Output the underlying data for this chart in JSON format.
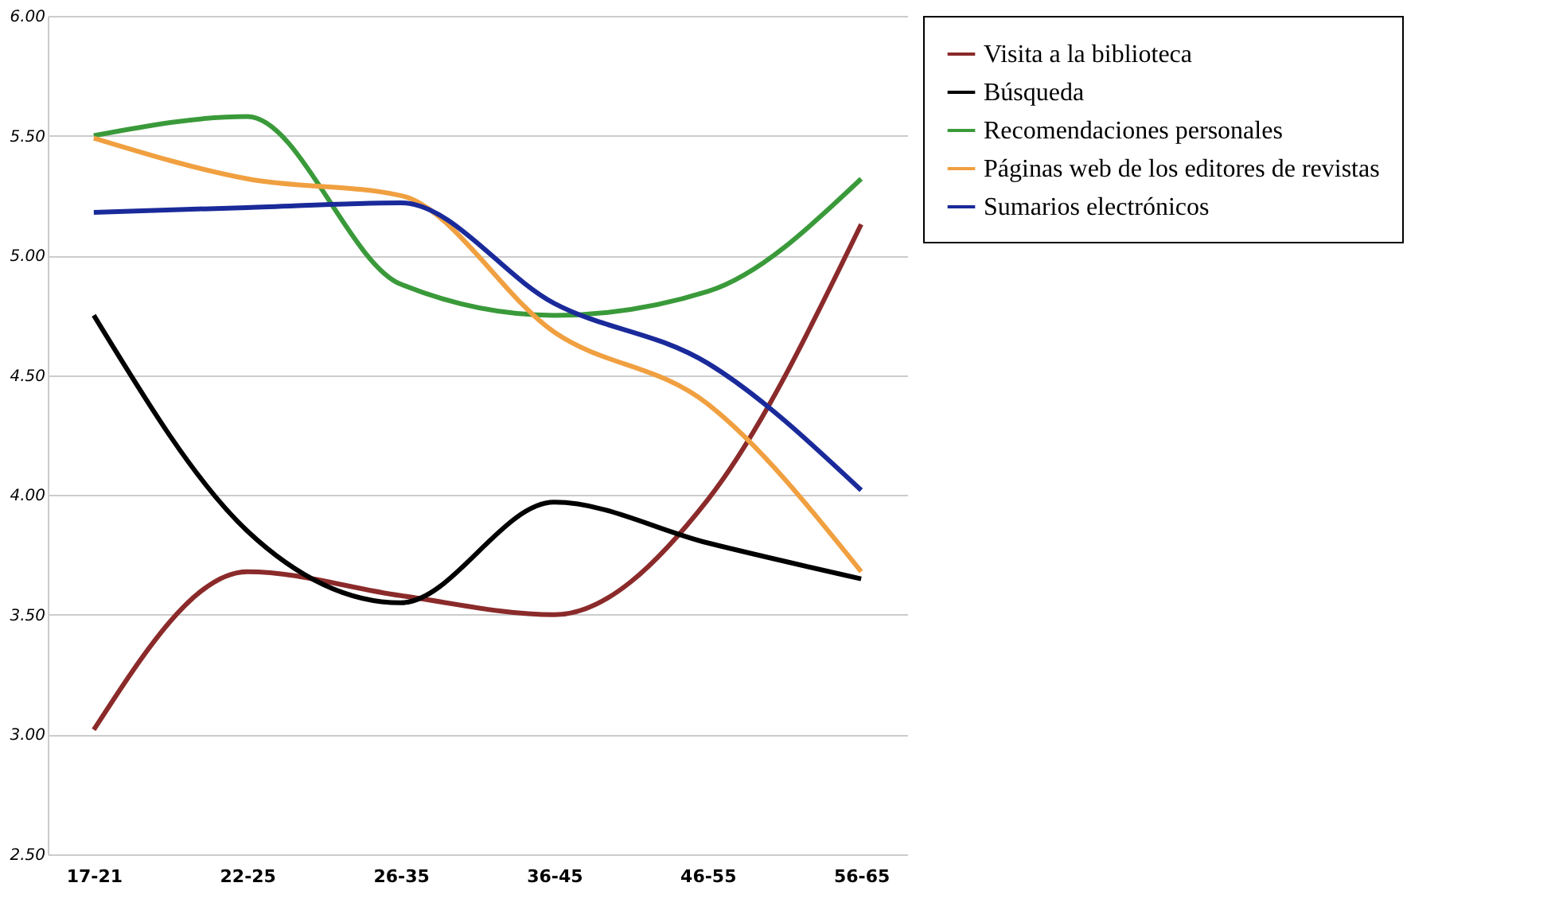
{
  "chart_data": {
    "type": "line",
    "categories": [
      "17-21",
      "22-25",
      "26-35",
      "36-45",
      "46-55",
      "56-65"
    ],
    "series": [
      {
        "name": "Visita a la biblioteca",
        "color": "#8b2a2a",
        "values": [
          3.02,
          3.68,
          3.58,
          3.5,
          3.98,
          5.13
        ]
      },
      {
        "name": "Búsqueda",
        "color": "#000000",
        "values": [
          4.75,
          3.85,
          3.55,
          3.97,
          3.8,
          3.65
        ]
      },
      {
        "name": "Recomendaciones personales",
        "color": "#3a9a3a",
        "values": [
          5.5,
          5.58,
          4.88,
          4.75,
          4.85,
          5.32
        ]
      },
      {
        "name": "Páginas web de los editores de revistas",
        "color": "#f0a040",
        "values": [
          5.49,
          5.32,
          5.25,
          4.68,
          4.38,
          3.68
        ]
      },
      {
        "name": "Sumarios electrónicos",
        "color": "#1a2a9a",
        "values": [
          5.18,
          5.2,
          5.22,
          4.8,
          4.55,
          4.02
        ]
      }
    ],
    "ylim": [
      2.5,
      6.0
    ],
    "yticks": [
      {
        "value": 2.5,
        "label": "2.50"
      },
      {
        "value": 3.0,
        "label": "3.00"
      },
      {
        "value": 3.5,
        "label": "3.50"
      },
      {
        "value": 4.0,
        "label": "4.00"
      },
      {
        "value": 4.5,
        "label": "4.50"
      },
      {
        "value": 5.0,
        "label": "5.00"
      },
      {
        "value": 5.5,
        "label": "5.50"
      },
      {
        "value": 6.0,
        "label": "6.00"
      }
    ],
    "grid": "y",
    "legend": "right",
    "marker": "none",
    "line_style": "solid"
  }
}
